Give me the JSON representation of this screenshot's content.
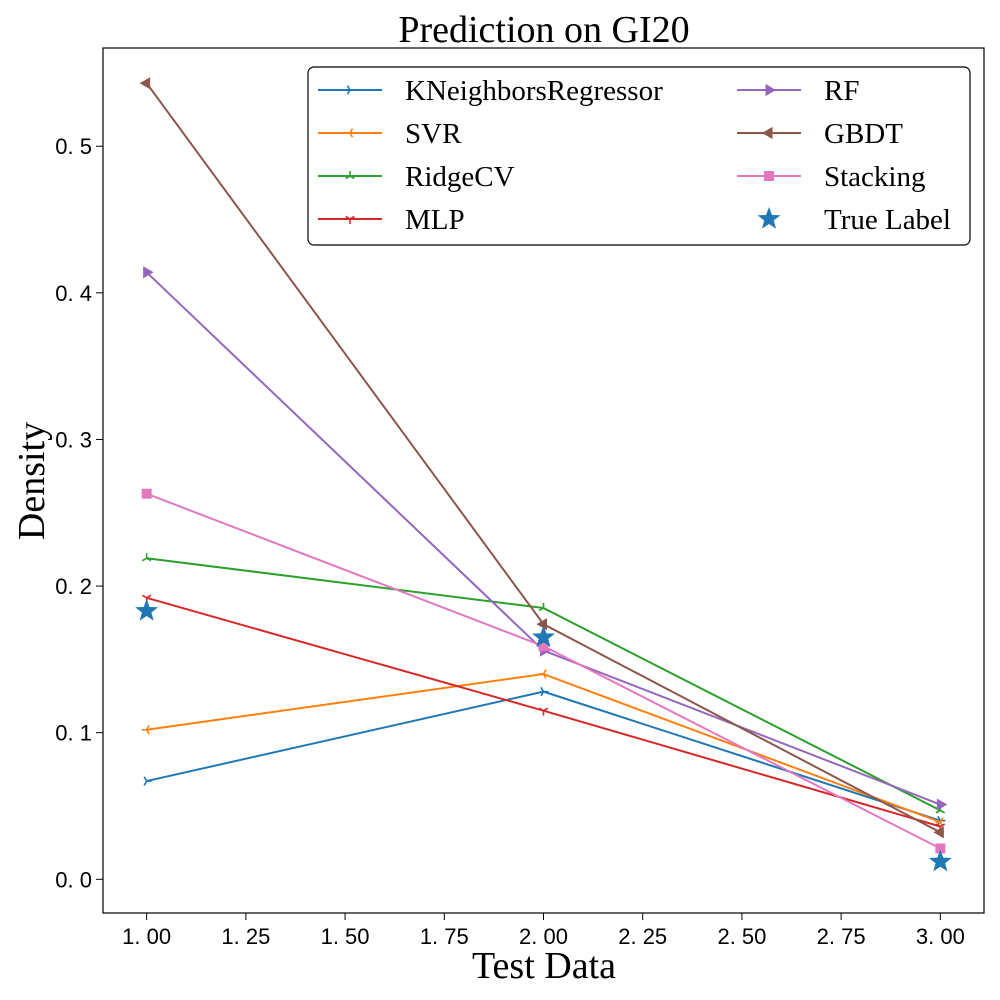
{
  "chart_data": {
    "type": "line",
    "title": "Prediction on GI20",
    "xlabel": "Test Data",
    "ylabel": "Density",
    "x": [
      1,
      2,
      3
    ],
    "xlim": [
      0.89,
      3.11
    ],
    "ylim": [
      -0.023,
      0.567
    ],
    "xticks": [
      1.0,
      1.25,
      1.5,
      1.75,
      2.0,
      2.25,
      2.5,
      2.75,
      3.0
    ],
    "xtick_labels": [
      "1. 00",
      "1. 25",
      "1. 50",
      "1. 75",
      "2. 00",
      "2. 25",
      "2. 50",
      "2. 75",
      "3. 00"
    ],
    "yticks": [
      0.0,
      0.1,
      0.2,
      0.3,
      0.4,
      0.5
    ],
    "ytick_labels": [
      "0. 0",
      "0. 1",
      "0. 2",
      "0. 3",
      "0. 4",
      "0. 5"
    ],
    "grid": false,
    "legend_position": "top-right",
    "legend_columns": 2,
    "series": [
      {
        "name": "KNeighborsRegressor",
        "color": "#1f77b4",
        "marker": "tri-right",
        "values": [
          0.067,
          0.128,
          0.04
        ]
      },
      {
        "name": "SVR",
        "color": "#ff7f0e",
        "marker": "tri-left",
        "values": [
          0.102,
          0.14,
          0.039
        ]
      },
      {
        "name": "RidgeCV",
        "color": "#2ca02c",
        "marker": "tri-up",
        "values": [
          0.219,
          0.185,
          0.047
        ]
      },
      {
        "name": "MLP",
        "color": "#d62728",
        "marker": "tri-down",
        "values": [
          0.192,
          0.115,
          0.036
        ]
      },
      {
        "name": "RF",
        "color": "#9467bd",
        "marker": "triangle-right",
        "values": [
          0.414,
          0.156,
          0.051
        ]
      },
      {
        "name": "GBDT",
        "color": "#8c564b",
        "marker": "triangle-left",
        "values": [
          0.543,
          0.174,
          0.032
        ]
      },
      {
        "name": "Stacking",
        "color": "#e377c2",
        "marker": "square",
        "values": [
          0.263,
          0.159,
          0.021
        ]
      }
    ],
    "true_label": {
      "name": "True Label",
      "color": "#1f77b4",
      "marker": "star",
      "values": [
        0.183,
        0.165,
        0.012
      ]
    }
  }
}
